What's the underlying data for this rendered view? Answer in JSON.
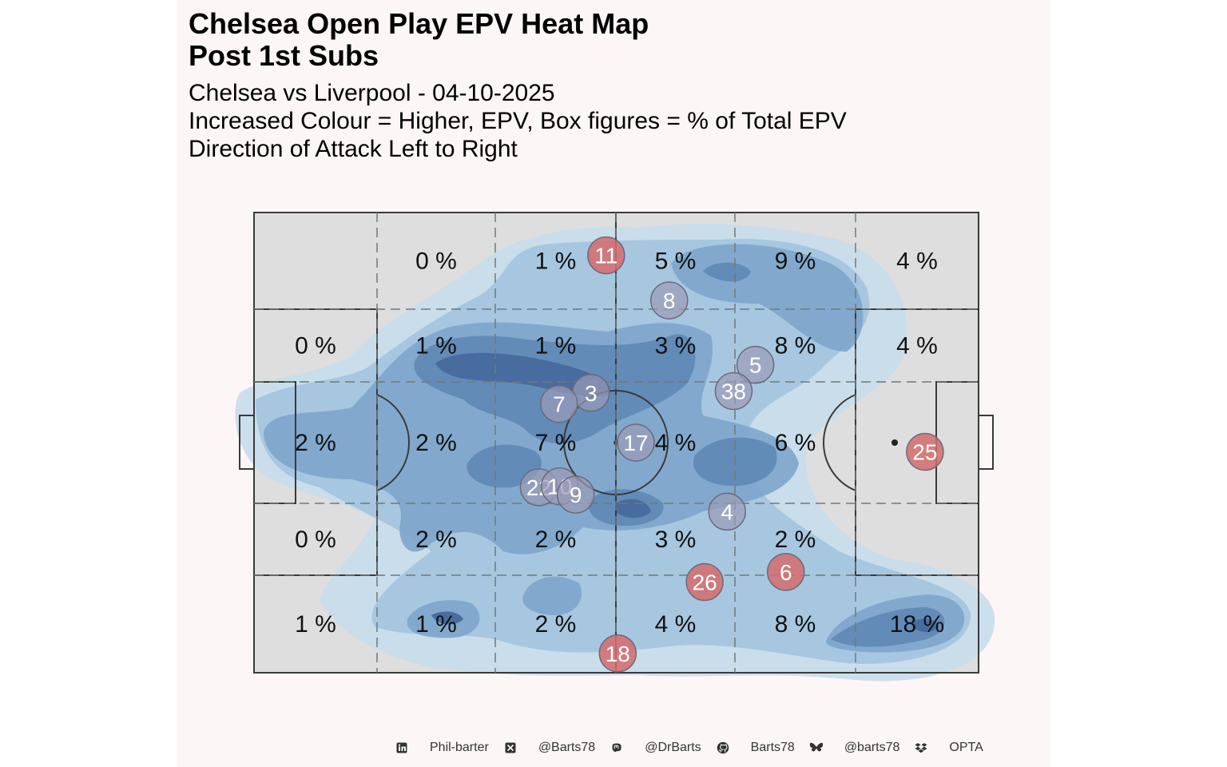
{
  "title_lines": [
    "Chelsea Open Play EPV Heat Map",
    "Post 1st Subs"
  ],
  "subtitle_lines": [
    "Chelsea vs Liverpool - 04-10-2025",
    "Increased Colour = Higher, EPV, Box figures = % of Total EPV",
    "Direction of Attack Left to Right"
  ],
  "colors": {
    "background": "#fdf6f6",
    "pitch": "#dedede",
    "heat": [
      "#c8dcec",
      "#a4c4de",
      "#7fa6cb",
      "#5f89b6",
      "#44699a",
      "#2f4f7a"
    ],
    "player_home": "#9b9bb6",
    "player_highlight": "#d36b6b"
  },
  "chart_data": {
    "type": "heatmap",
    "title": "Chelsea Open Play EPV Heat Map Post 1st Subs",
    "zone_grid": {
      "columns": 6,
      "rows": 5,
      "labels": [
        [
          "",
          "0 %",
          "1 %",
          "5 %",
          "9 %",
          "4 %"
        ],
        [
          "0 %",
          "1 %",
          "1 %",
          "3 %",
          "8 %",
          "4 %"
        ],
        [
          "2 %",
          "2 %",
          "7 %",
          "4 %",
          "6 %",
          ""
        ],
        [
          "0 %",
          "2 %",
          "2 %",
          "3 %",
          "2 %",
          ""
        ],
        [
          "1 %",
          "1 %",
          "2 %",
          "4 %",
          "8 %",
          "18 %"
        ]
      ]
    },
    "players": [
      {
        "number": "11",
        "x": 0.486,
        "y": 0.093,
        "highlight": true
      },
      {
        "number": "8",
        "x": 0.573,
        "y": 0.191,
        "highlight": false
      },
      {
        "number": "5",
        "x": 0.692,
        "y": 0.331,
        "highlight": false
      },
      {
        "number": "38",
        "x": 0.662,
        "y": 0.388,
        "highlight": false
      },
      {
        "number": "3",
        "x": 0.465,
        "y": 0.392,
        "highlight": false
      },
      {
        "number": "7",
        "x": 0.421,
        "y": 0.416,
        "highlight": false
      },
      {
        "number": "17",
        "x": 0.527,
        "y": 0.5,
        "highlight": false
      },
      {
        "number": "25",
        "x": 0.926,
        "y": 0.52,
        "highlight": true
      },
      {
        "number": "22",
        "x": 0.393,
        "y": 0.597,
        "highlight": false
      },
      {
        "number": "10",
        "x": 0.422,
        "y": 0.595,
        "highlight": false
      },
      {
        "number": "9",
        "x": 0.444,
        "y": 0.613,
        "highlight": false
      },
      {
        "number": "4",
        "x": 0.653,
        "y": 0.65,
        "highlight": false
      },
      {
        "number": "6",
        "x": 0.734,
        "y": 0.781,
        "highlight": true
      },
      {
        "number": "26",
        "x": 0.622,
        "y": 0.803,
        "highlight": true
      },
      {
        "number": "18",
        "x": 0.502,
        "y": 0.958,
        "highlight": true
      }
    ]
  },
  "footer": [
    {
      "icon": "linkedin-icon",
      "text": "Phil-barter"
    },
    {
      "icon": "x-icon",
      "text": "@Barts78"
    },
    {
      "icon": "mastodon-icon",
      "text": "@DrBarts"
    },
    {
      "icon": "github-icon",
      "text": "Barts78"
    },
    {
      "icon": "bluesky-icon",
      "text": "@barts78"
    },
    {
      "icon": "dropbox-icon",
      "text": "OPTA"
    }
  ]
}
